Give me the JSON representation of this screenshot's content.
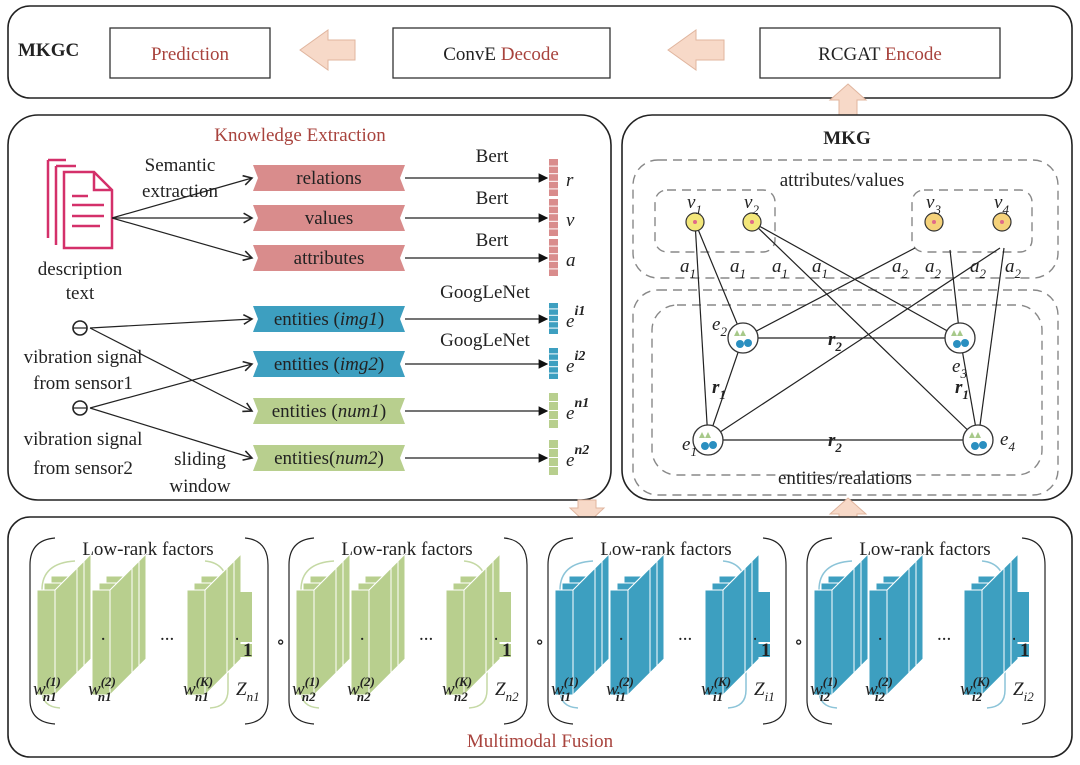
{
  "top": {
    "label": "MKGC",
    "prediction": "Prediction",
    "decode_prefix": "ConvE ",
    "decode_suffix": "Decode",
    "encode_prefix": "RCGAT ",
    "encode_suffix": "Encode"
  },
  "extraction": {
    "title": "Knowledge Extraction",
    "semantic": [
      "Semantic",
      "extraction"
    ],
    "description": [
      "description",
      "text"
    ],
    "sensor1": [
      "vibration signal",
      "from  sensor1"
    ],
    "sensor2": [
      "vibration signal",
      "from  sensor2"
    ],
    "sliding": [
      "sliding",
      "window"
    ],
    "bert": "Bert",
    "googlenet": "GoogLeNet",
    "boxes": [
      {
        "pre": "relations",
        "it": "",
        "post": "",
        "color": "#d98c8c",
        "vec": "r",
        "sup": ""
      },
      {
        "pre": "values",
        "it": "",
        "post": "",
        "color": "#d98c8c",
        "vec": "v",
        "sup": ""
      },
      {
        "pre": "attributes",
        "it": "",
        "post": "",
        "color": "#d98c8c",
        "vec": "a",
        "sup": ""
      },
      {
        "pre": "entities (",
        "it": "img1",
        "post": ")",
        "color": "#3d9fc0",
        "vec": "e",
        "sup": "i1"
      },
      {
        "pre": "entities (",
        "it": "img2",
        "post": ")",
        "color": "#3d9fc0",
        "vec": "e",
        "sup": "i2"
      },
      {
        "pre": "entities (",
        "it": "num1",
        "post": ")",
        "color": "#b8cf8e",
        "vec": "e",
        "sup": "n1"
      },
      {
        "pre": "entities(",
        "it": "num2",
        "post": ")",
        "color": "#b8cf8e",
        "vec": "e",
        "sup": "n2"
      }
    ]
  },
  "mkg": {
    "title": "MKG",
    "attr_label": "attributes/values",
    "ent_label": "entities/realations",
    "values": [
      "v",
      "1",
      "2",
      "3",
      "4"
    ],
    "attr_edges": [
      "a",
      "1",
      "2"
    ],
    "entities": [
      "e",
      "1",
      "2",
      "3",
      "4"
    ],
    "relations": [
      "r",
      "1",
      "2"
    ]
  },
  "fusion": {
    "title": "Multimodal Fusion",
    "group_label": "Low-rank factors",
    "ellipsis": "...",
    "one": "1",
    "compose": "∘",
    "groups": [
      {
        "color": "#b8cf8e",
        "line": "#c5d9a5",
        "sub": "n1"
      },
      {
        "color": "#b8cf8e",
        "line": "#c5d9a5",
        "sub": "n2"
      },
      {
        "color": "#3d9fc0",
        "line": "#8cc4d8",
        "sub": "i1"
      },
      {
        "color": "#3d9fc0",
        "line": "#8cc4d8",
        "sub": "i2"
      }
    ],
    "w": "w",
    "z": "Z",
    "sups": [
      "(1)",
      "(2)",
      "(K)"
    ]
  },
  "colors": {
    "arrow_fill": "#f7d9c8",
    "arrow_stroke": "#e0b59e",
    "accent_red": "#a8433d",
    "doc": "#d4306a"
  }
}
